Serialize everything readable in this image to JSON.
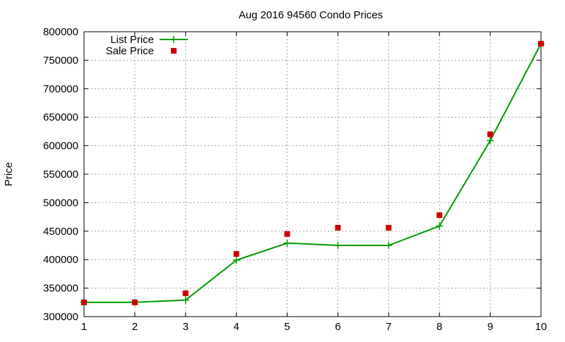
{
  "chart_data": {
    "type": "line",
    "title": "Aug 2016 94560 Condo Prices",
    "xlabel": "",
    "ylabel": "Price",
    "xlim": [
      1,
      10
    ],
    "ylim": [
      300000,
      800000
    ],
    "x_ticks": [
      "1",
      "2",
      "3",
      "4",
      "5",
      "6",
      "7",
      "8",
      "9",
      "10"
    ],
    "y_ticks": [
      "300000",
      "350000",
      "400000",
      "450000",
      "500000",
      "550000",
      "600000",
      "650000",
      "700000",
      "750000",
      "800000"
    ],
    "grid": true,
    "legend_position": "top-left",
    "x": [
      1,
      2,
      3,
      4,
      5,
      6,
      7,
      8,
      9,
      10
    ],
    "series": [
      {
        "name": "List Price",
        "style": "line+cross",
        "color": "#009900",
        "values": [
          325000,
          325000,
          329000,
          399000,
          429000,
          425000,
          425000,
          459000,
          609000,
          779000
        ]
      },
      {
        "name": "Sale Price",
        "style": "square",
        "color": "#cc0000",
        "values": [
          325000,
          325000,
          341000,
          410000,
          445000,
          456000,
          456000,
          478000,
          620000,
          779000
        ]
      }
    ]
  }
}
